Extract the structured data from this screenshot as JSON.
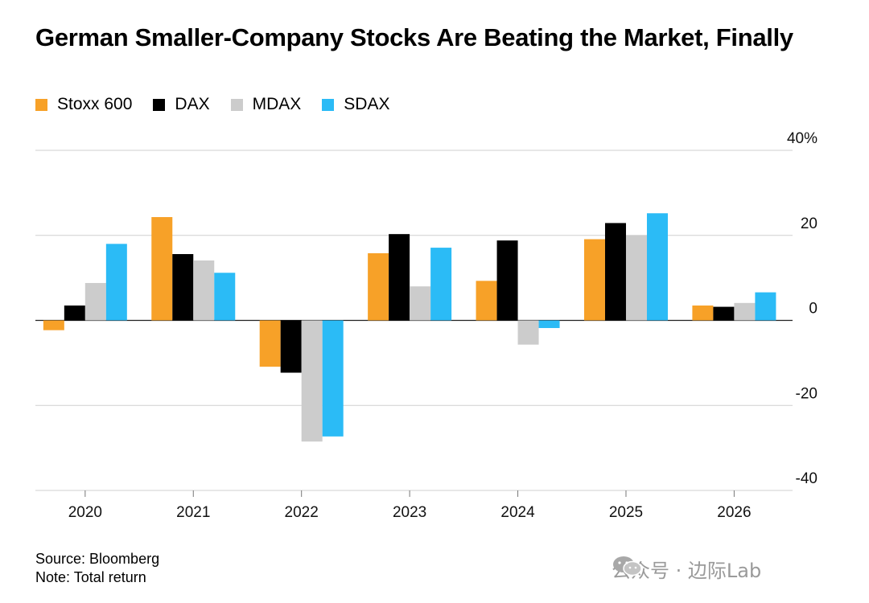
{
  "title": "German Smaller-Company Stocks Are Beating the Market, Finally",
  "legend": [
    {
      "label": "Stoxx 600",
      "color": "#F7A128"
    },
    {
      "label": "DAX",
      "color": "#000000"
    },
    {
      "label": "MDAX",
      "color": "#CCCCCC"
    },
    {
      "label": "SDAX",
      "color": "#2BBBF6"
    }
  ],
  "chart_data": {
    "type": "bar",
    "title": "German Smaller-Company Stocks Are Beating the Market, Finally",
    "xlabel": "",
    "ylabel": "",
    "ylim": [
      -40,
      40
    ],
    "yticks": [
      40,
      20,
      0,
      -20,
      -40
    ],
    "ytick_labels": [
      "40%",
      "20",
      "0",
      "-20",
      "-40"
    ],
    "categories": [
      "2020",
      "2021",
      "2022",
      "2023",
      "2024",
      "2025",
      "2026"
    ],
    "series": [
      {
        "name": "Stoxx 600",
        "color": "#F7A128",
        "values": [
          -2.3,
          24.3,
          -10.9,
          15.8,
          9.3,
          19.1,
          3.5
        ]
      },
      {
        "name": "DAX",
        "color": "#000000",
        "values": [
          3.5,
          15.6,
          -12.3,
          20.3,
          18.8,
          22.9,
          3.2
        ]
      },
      {
        "name": "MDAX",
        "color": "#CCCCCC",
        "values": [
          8.8,
          14.1,
          -28.5,
          8.0,
          -5.7,
          20.0,
          4.1
        ]
      },
      {
        "name": "SDAX",
        "color": "#2BBBF6",
        "values": [
          18.0,
          11.2,
          -27.3,
          17.1,
          -1.8,
          25.2,
          6.6
        ]
      }
    ],
    "legend_position": "top-left",
    "grid": true
  },
  "footer": {
    "source": "Source: Bloomberg",
    "note": "Note: Total return"
  },
  "watermark": {
    "text": "公众号 · 边际Lab"
  }
}
